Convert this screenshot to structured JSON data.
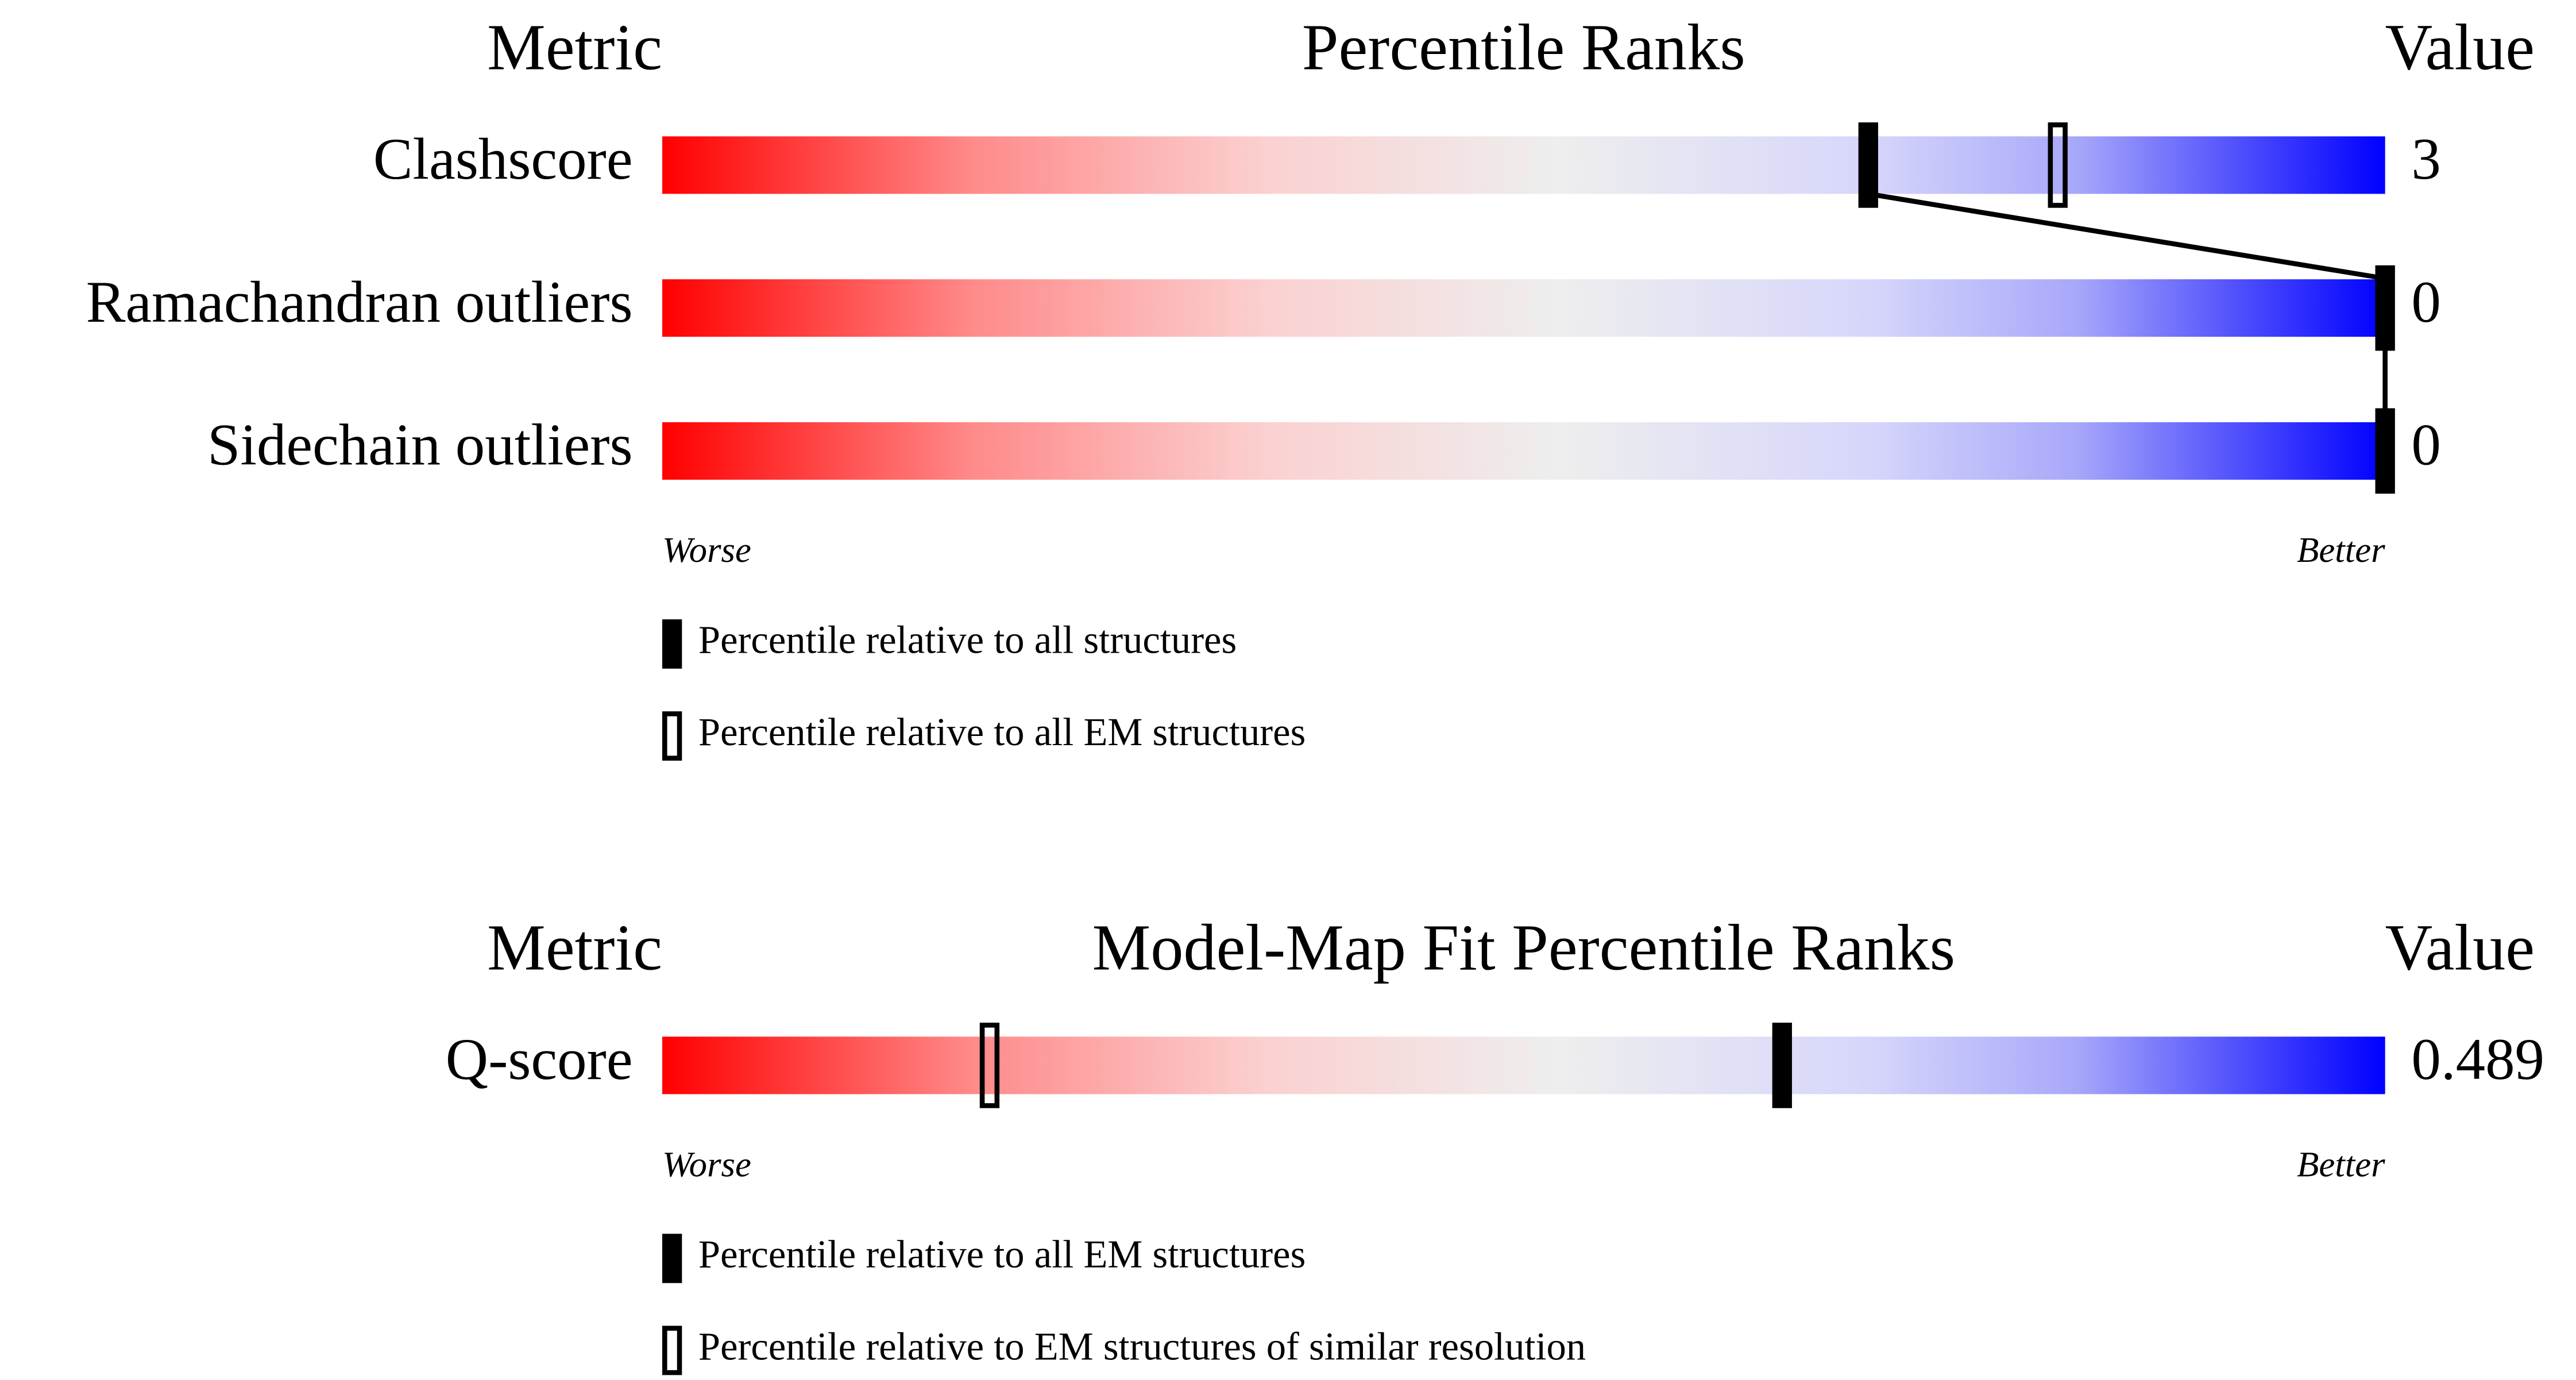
{
  "chart_data": [
    {
      "type": "percentile",
      "metric_header": "Metric",
      "title": "Percentile Ranks",
      "value_header": "Value",
      "categories": [
        "Clashscore",
        "Ramachandran outliers",
        "Sidechain outliers"
      ],
      "values": [
        3,
        0,
        0
      ],
      "xlim": [
        0,
        100
      ],
      "worse_label": "Worse",
      "better_label": "Better",
      "series": [
        {
          "name": "Percentile relative to all structures",
          "color": "#000000",
          "marker": "filled",
          "connect": true,
          "values": [
            70,
            100,
            100
          ]
        },
        {
          "name": "Percentile relative to all EM structures",
          "color": "#000000",
          "marker": "open",
          "connect": false,
          "values": [
            81,
            null,
            null
          ]
        }
      ]
    },
    {
      "type": "percentile",
      "metric_header": "Metric",
      "title": "Model-Map Fit Percentile Ranks",
      "value_header": "Value",
      "categories": [
        "Q-score"
      ],
      "values": [
        0.489
      ],
      "xlim": [
        0,
        100
      ],
      "worse_label": "Worse",
      "better_label": "Better",
      "series": [
        {
          "name": "Percentile relative to all EM structures",
          "color": "#000000",
          "marker": "filled",
          "connect": true,
          "values": [
            65
          ]
        },
        {
          "name": "Percentile relative to EM structures of similar resolution",
          "color": "#000000",
          "marker": "open",
          "connect": false,
          "values": [
            19
          ]
        }
      ]
    }
  ]
}
